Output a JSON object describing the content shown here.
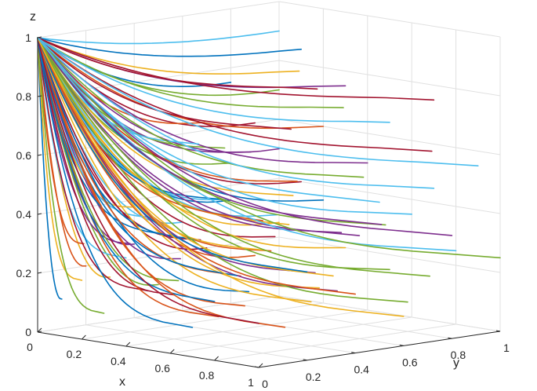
{
  "chart_data": {
    "type": "line",
    "subtype": "3d-trajectories",
    "title": "",
    "xlabel": "x",
    "ylabel": "y",
    "zlabel": "z",
    "xlim": [
      0,
      1
    ],
    "ylim": [
      0,
      1
    ],
    "zlim": [
      0,
      1
    ],
    "x_ticks": [
      "0",
      "0.2",
      "0.4",
      "0.6",
      "0.8",
      "1"
    ],
    "y_ticks": [
      "0",
      "0.2",
      "0.4",
      "0.6",
      "0.8",
      "1"
    ],
    "z_ticks": [
      "0",
      "0.2",
      "0.4",
      "0.6",
      "0.8",
      "1"
    ],
    "grid": true,
    "view": "3d",
    "colors": [
      "#0072BD",
      "#D95319",
      "#EDB120",
      "#7E2F8E",
      "#77AC30",
      "#4DBEEE",
      "#A2142F"
    ],
    "trajectory_endpoint": [
      0,
      0,
      1
    ],
    "trajectories": [
      {
        "start": [
          0.0,
          0.1,
          0.1
        ]
      },
      {
        "start": [
          0.0,
          0.2,
          0.2
        ]
      },
      {
        "start": [
          0.0,
          0.3,
          0.15
        ]
      },
      {
        "start": [
          0.0,
          0.4,
          0.25
        ]
      },
      {
        "start": [
          0.0,
          0.5,
          0.1
        ]
      },
      {
        "start": [
          0.0,
          0.6,
          0.3
        ]
      },
      {
        "start": [
          0.0,
          0.7,
          0.2
        ]
      },
      {
        "start": [
          0.0,
          0.8,
          0.35
        ]
      },
      {
        "start": [
          0.0,
          0.9,
          0.15
        ]
      },
      {
        "start": [
          0.0,
          1.0,
          0.25
        ]
      },
      {
        "start": [
          0.0,
          1.0,
          0.5
        ]
      },
      {
        "start": [
          0.0,
          1.0,
          0.7
        ]
      },
      {
        "start": [
          0.0,
          1.0,
          0.9
        ]
      },
      {
        "start": [
          0.0,
          0.9,
          0.6
        ]
      },
      {
        "start": [
          0.0,
          0.8,
          0.75
        ]
      },
      {
        "start": [
          0.1,
          0.1,
          0.3
        ]
      },
      {
        "start": [
          0.1,
          0.3,
          0.4
        ]
      },
      {
        "start": [
          0.1,
          0.5,
          0.2
        ]
      },
      {
        "start": [
          0.1,
          0.7,
          0.5
        ]
      },
      {
        "start": [
          0.1,
          0.9,
          0.3
        ]
      },
      {
        "start": [
          0.1,
          1.0,
          0.4
        ]
      },
      {
        "start": [
          0.1,
          1.0,
          0.85
        ]
      },
      {
        "start": [
          0.1,
          0.6,
          0.65
        ]
      },
      {
        "start": [
          0.2,
          0.0,
          0.2
        ]
      },
      {
        "start": [
          0.2,
          0.2,
          0.3
        ]
      },
      {
        "start": [
          0.2,
          0.4,
          0.15
        ]
      },
      {
        "start": [
          0.2,
          0.6,
          0.4
        ]
      },
      {
        "start": [
          0.2,
          0.8,
          0.25
        ]
      },
      {
        "start": [
          0.2,
          1.0,
          0.35
        ]
      },
      {
        "start": [
          0.2,
          1.0,
          0.6
        ]
      },
      {
        "start": [
          0.2,
          0.9,
          0.8
        ]
      },
      {
        "start": [
          0.2,
          0.7,
          0.55
        ]
      },
      {
        "start": [
          0.3,
          0.0,
          0.1
        ]
      },
      {
        "start": [
          0.3,
          0.2,
          0.4
        ]
      },
      {
        "start": [
          0.3,
          0.4,
          0.3
        ]
      },
      {
        "start": [
          0.3,
          0.6,
          0.1
        ]
      },
      {
        "start": [
          0.3,
          0.8,
          0.45
        ]
      },
      {
        "start": [
          0.3,
          1.0,
          0.2
        ]
      },
      {
        "start": [
          0.3,
          1.0,
          0.75
        ]
      },
      {
        "start": [
          0.3,
          0.5,
          0.6
        ]
      },
      {
        "start": [
          0.4,
          0.0,
          0.3
        ]
      },
      {
        "start": [
          0.4,
          0.2,
          0.15
        ]
      },
      {
        "start": [
          0.4,
          0.4,
          0.45
        ]
      },
      {
        "start": [
          0.4,
          0.6,
          0.25
        ]
      },
      {
        "start": [
          0.4,
          0.8,
          0.1
        ]
      },
      {
        "start": [
          0.4,
          1.0,
          0.5
        ]
      },
      {
        "start": [
          0.4,
          0.9,
          0.7
        ]
      },
      {
        "start": [
          0.4,
          0.3,
          0.65
        ]
      },
      {
        "start": [
          0.5,
          0.0,
          0.2
        ]
      },
      {
        "start": [
          0.5,
          0.2,
          0.35
        ]
      },
      {
        "start": [
          0.5,
          0.4,
          0.1
        ]
      },
      {
        "start": [
          0.5,
          0.6,
          0.45
        ]
      },
      {
        "start": [
          0.5,
          0.8,
          0.3
        ]
      },
      {
        "start": [
          0.5,
          1.0,
          0.15
        ]
      },
      {
        "start": [
          0.5,
          1.0,
          0.65
        ]
      },
      {
        "start": [
          0.5,
          0.7,
          0.8
        ]
      },
      {
        "start": [
          0.6,
          0.0,
          0.4
        ]
      },
      {
        "start": [
          0.6,
          0.2,
          0.1
        ]
      },
      {
        "start": [
          0.6,
          0.4,
          0.3
        ]
      },
      {
        "start": [
          0.6,
          0.6,
          0.2
        ]
      },
      {
        "start": [
          0.6,
          0.8,
          0.5
        ]
      },
      {
        "start": [
          0.6,
          1.0,
          0.35
        ]
      },
      {
        "start": [
          0.6,
          0.5,
          0.7
        ]
      },
      {
        "start": [
          0.7,
          0.0,
          0.1
        ]
      },
      {
        "start": [
          0.7,
          0.2,
          0.25
        ]
      },
      {
        "start": [
          0.7,
          0.4,
          0.4
        ]
      },
      {
        "start": [
          0.7,
          0.6,
          0.15
        ]
      },
      {
        "start": [
          0.7,
          0.8,
          0.35
        ]
      },
      {
        "start": [
          0.7,
          1.0,
          0.45
        ]
      },
      {
        "start": [
          0.7,
          1.0,
          0.75
        ]
      },
      {
        "start": [
          0.8,
          0.0,
          0.2
        ]
      },
      {
        "start": [
          0.8,
          0.2,
          0.45
        ]
      },
      {
        "start": [
          0.8,
          0.4,
          0.15
        ]
      },
      {
        "start": [
          0.8,
          0.6,
          0.35
        ]
      },
      {
        "start": [
          0.8,
          0.8,
          0.1
        ]
      },
      {
        "start": [
          0.8,
          1.0,
          0.25
        ]
      },
      {
        "start": [
          0.8,
          0.9,
          0.6
        ]
      },
      {
        "start": [
          0.9,
          0.0,
          0.3
        ]
      },
      {
        "start": [
          0.9,
          0.2,
          0.1
        ]
      },
      {
        "start": [
          0.9,
          0.4,
          0.25
        ]
      },
      {
        "start": [
          0.9,
          0.6,
          0.4
        ]
      },
      {
        "start": [
          0.9,
          0.8,
          0.2
        ]
      },
      {
        "start": [
          0.9,
          1.0,
          0.55
        ]
      },
      {
        "start": [
          1.0,
          0.0,
          0.15
        ]
      },
      {
        "start": [
          1.0,
          0.2,
          0.3
        ]
      },
      {
        "start": [
          1.0,
          0.4,
          0.2
        ]
      },
      {
        "start": [
          1.0,
          0.6,
          0.1
        ]
      },
      {
        "start": [
          1.0,
          0.8,
          0.35
        ]
      },
      {
        "start": [
          1.0,
          1.0,
          0.25
        ]
      },
      {
        "start": [
          1.0,
          0.5,
          0.5
        ]
      }
    ]
  }
}
